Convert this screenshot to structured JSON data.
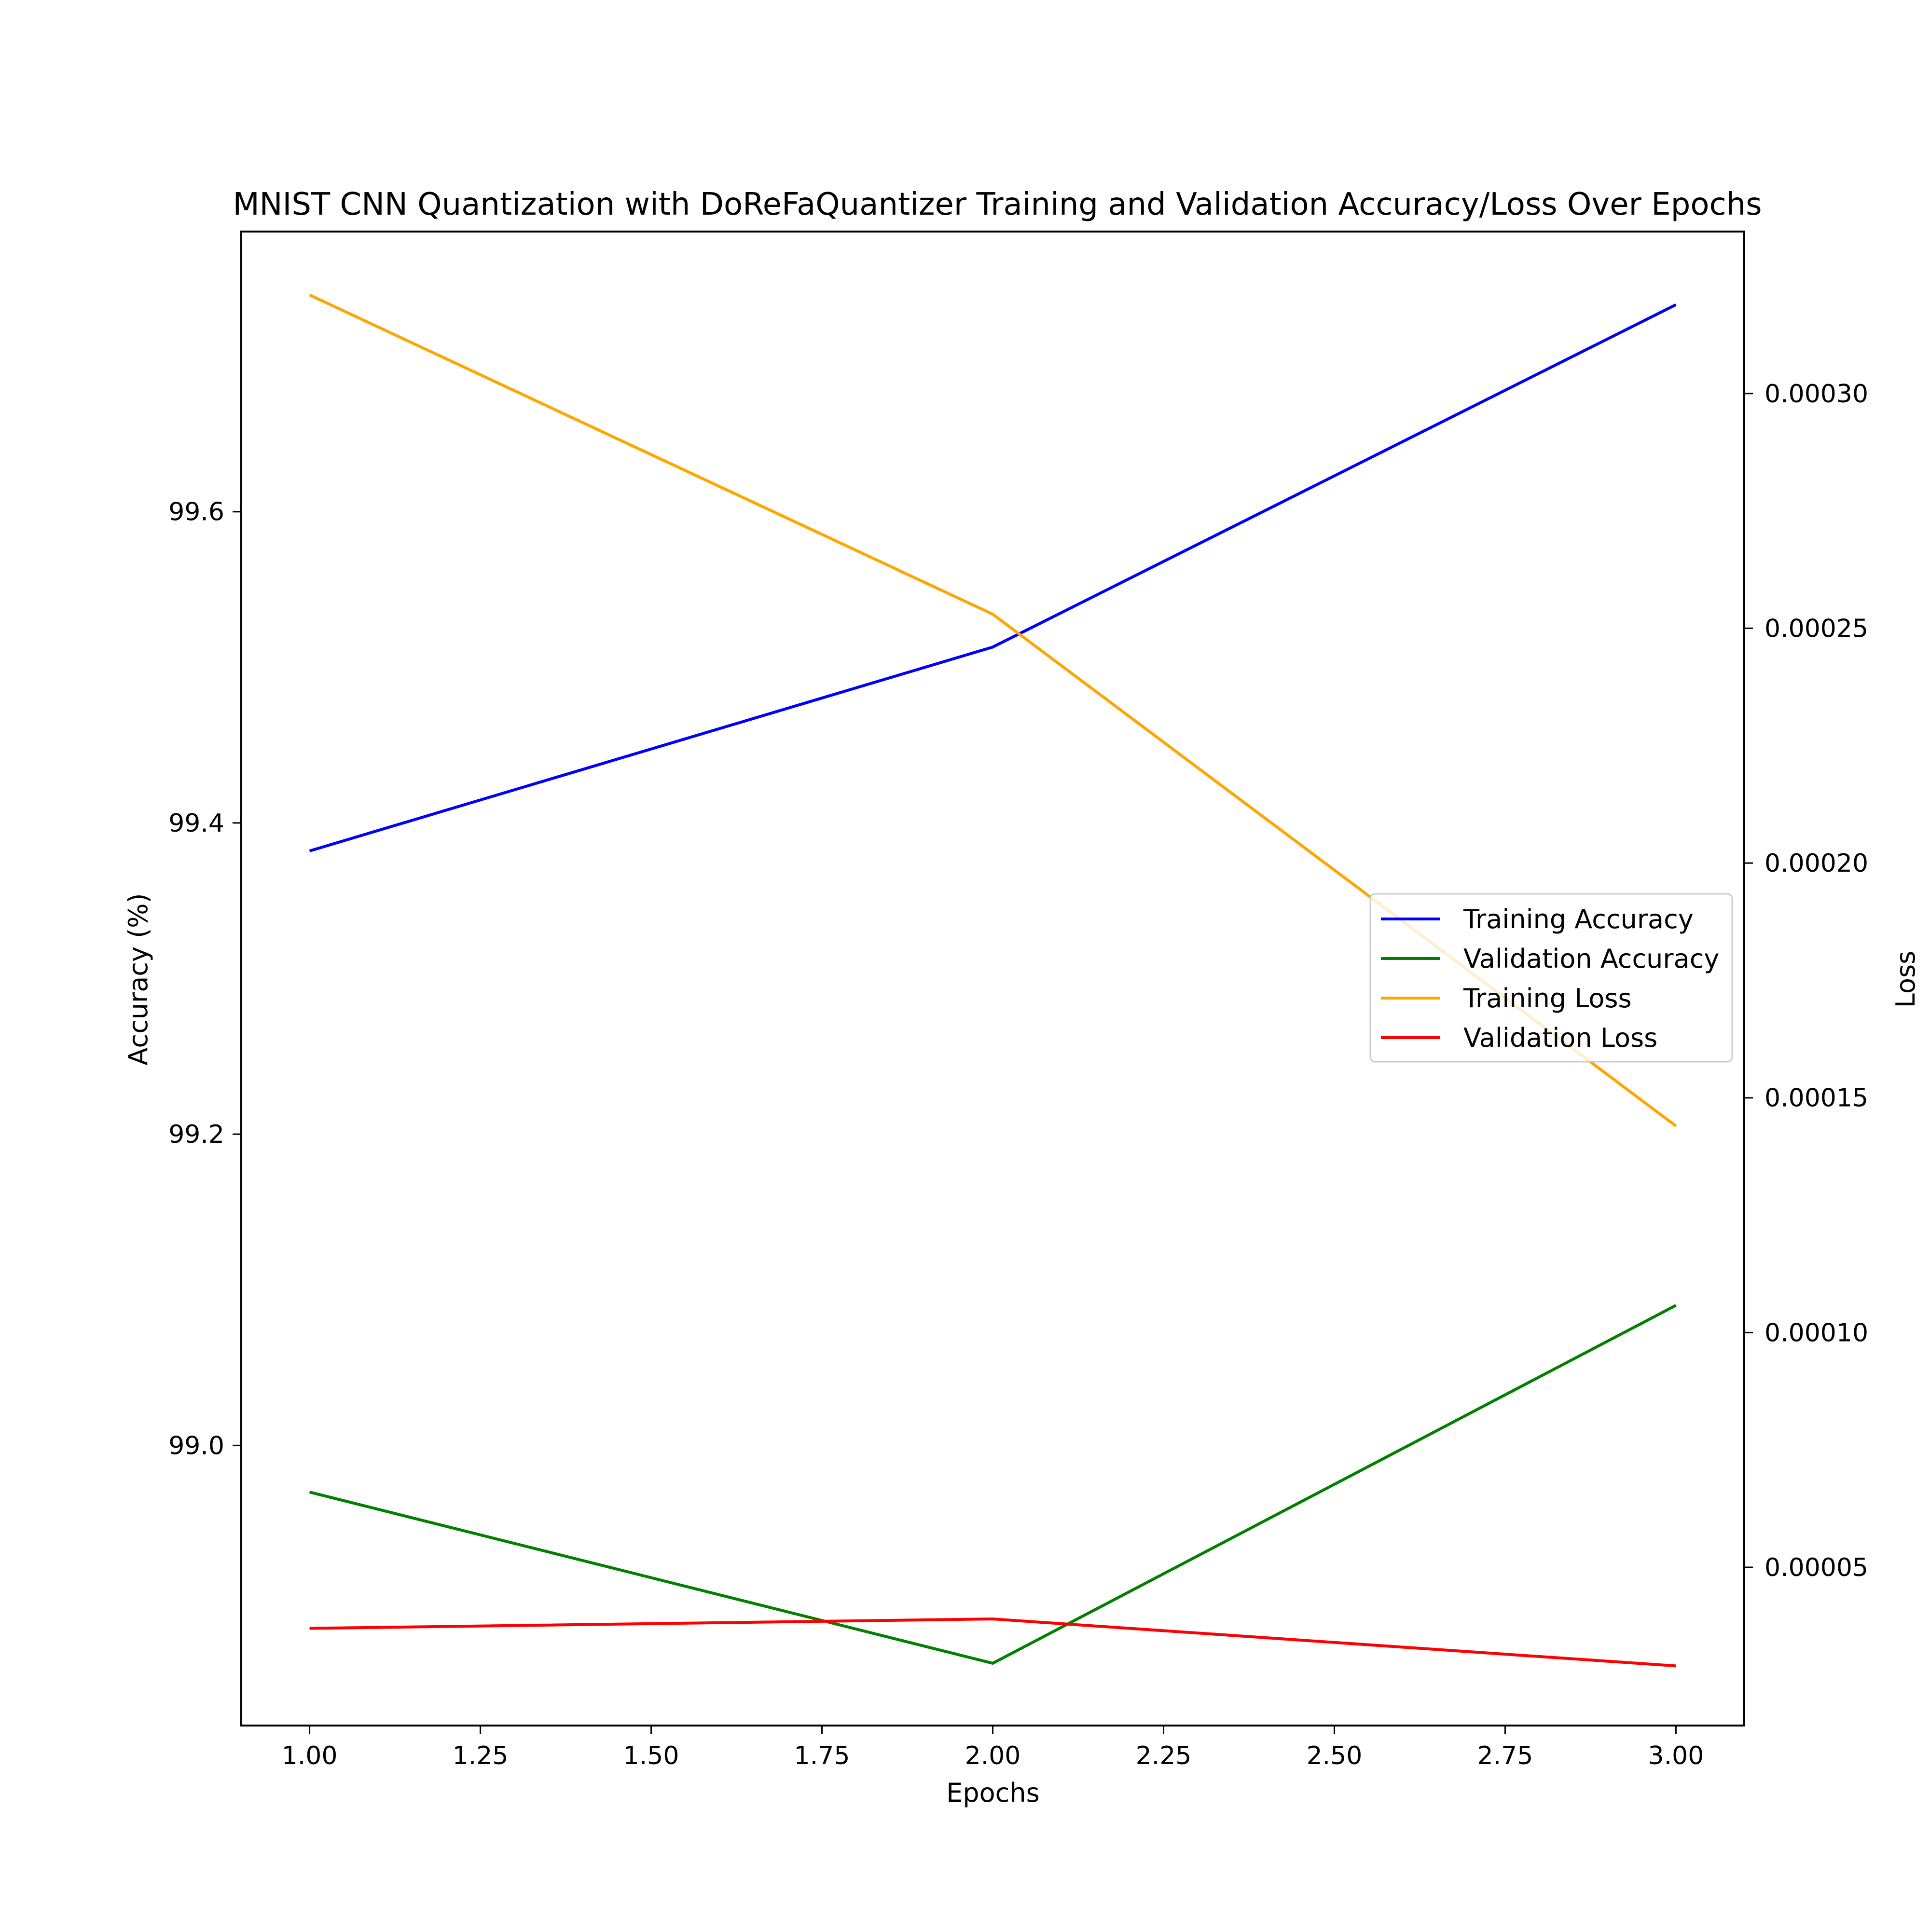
{
  "chart_data": {
    "type": "line",
    "title": "MNIST CNN Quantization with DoReFaQuantizer Training and Validation Accuracy/Loss Over Epochs",
    "xlabel": "Epochs",
    "ylabel_left": "Accuracy (%)",
    "ylabel_right": "Loss",
    "x": [
      1.0,
      2.0,
      3.0
    ],
    "xlim": [
      0.9,
      3.1
    ],
    "ylim_left": [
      98.82,
      99.78
    ],
    "ylim_right": [
      1.63e-05,
      0.0003345
    ],
    "x_ticks": [
      {
        "value": 1.0,
        "label": "1.00"
      },
      {
        "value": 1.25,
        "label": "1.25"
      },
      {
        "value": 1.5,
        "label": "1.50"
      },
      {
        "value": 1.75,
        "label": "1.75"
      },
      {
        "value": 2.0,
        "label": "2.00"
      },
      {
        "value": 2.25,
        "label": "2.25"
      },
      {
        "value": 2.5,
        "label": "2.50"
      },
      {
        "value": 2.75,
        "label": "2.75"
      },
      {
        "value": 3.0,
        "label": "3.00"
      }
    ],
    "y_ticks_left": [
      {
        "value": 99.0,
        "label": "99.0"
      },
      {
        "value": 99.2,
        "label": "99.2"
      },
      {
        "value": 99.4,
        "label": "99.4"
      },
      {
        "value": 99.6,
        "label": "99.6"
      }
    ],
    "y_ticks_right": [
      {
        "value": 5e-05,
        "label": "0.00005"
      },
      {
        "value": 0.0001,
        "label": "0.00010"
      },
      {
        "value": 0.00015,
        "label": "0.00015"
      },
      {
        "value": 0.0002,
        "label": "0.00020"
      },
      {
        "value": 0.00025,
        "label": "0.00025"
      },
      {
        "value": 0.0003,
        "label": "0.00030"
      }
    ],
    "series": [
      {
        "name": "Training Accuracy",
        "axis": "left",
        "color": "#0000ff",
        "values": [
          99.382,
          99.513,
          99.733
        ]
      },
      {
        "name": "Validation Accuracy",
        "axis": "left",
        "color": "#008000",
        "values": [
          98.97,
          98.86,
          99.09
        ]
      },
      {
        "name": "Training Loss",
        "axis": "right",
        "color": "#ffa500",
        "values": [
          0.000321,
          0.000253,
          0.000144
        ]
      },
      {
        "name": "Validation Loss",
        "axis": "right",
        "color": "#ff0000",
        "values": [
          3.7e-05,
          3.9e-05,
          2.9e-05
        ]
      }
    ],
    "legend_position": "center-right",
    "grid": false
  }
}
